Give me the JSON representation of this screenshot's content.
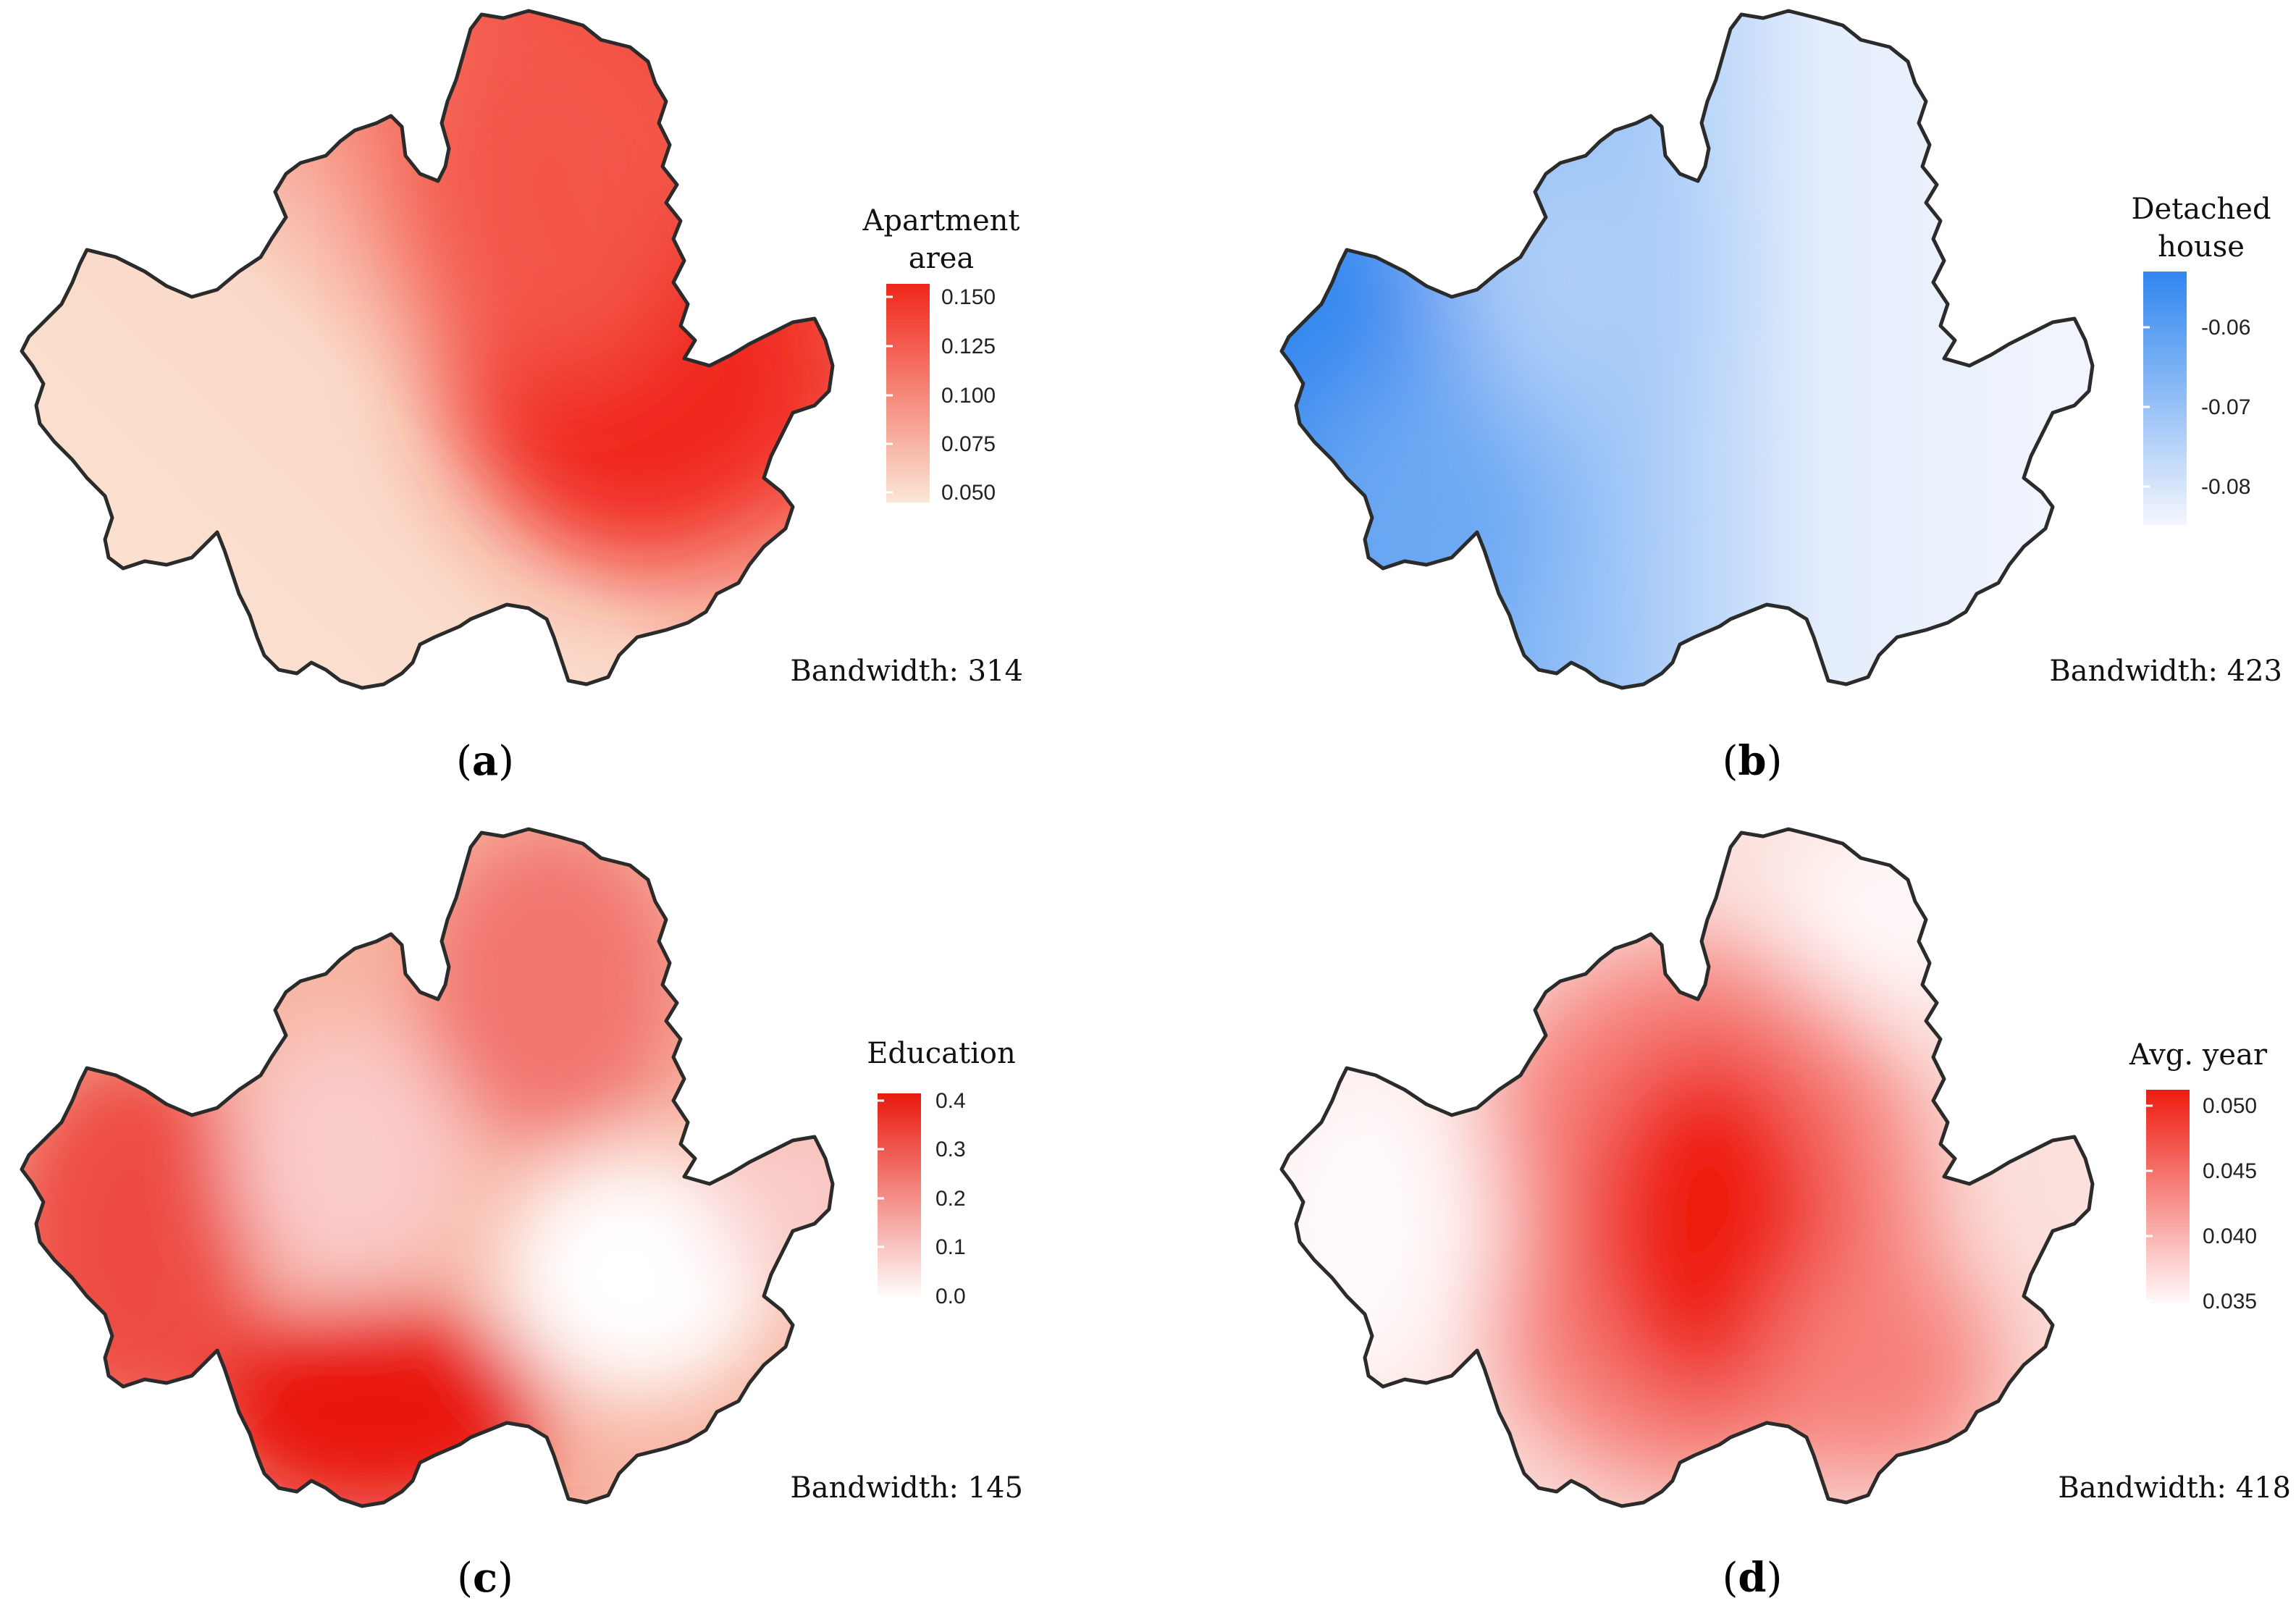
{
  "panels": [
    {
      "id": "a",
      "letter": "a",
      "legend_title": [
        "Apartment",
        "area"
      ],
      "ticks": [
        "0.150",
        "0.125",
        "0.100",
        "0.075",
        "0.050"
      ],
      "bandwidth": "Bandwidth: 314",
      "colors": {
        "low": "#fbe7d6",
        "high": "#f0261a"
      },
      "pattern": "apartment_area"
    },
    {
      "id": "b",
      "letter": "b",
      "legend_title": [
        "Detached",
        "house"
      ],
      "ticks": [
        "-0.06",
        "-0.07",
        "-0.08"
      ],
      "bandwidth": "Bandwidth: 423",
      "colors": {
        "low": "#f4f6fd",
        "high": "#2f86ef"
      },
      "pattern": "detached_house"
    },
    {
      "id": "c",
      "letter": "c",
      "legend_title": [
        "Education"
      ],
      "ticks": [
        "0.4",
        "0.3",
        "0.2",
        "0.1",
        "0.0"
      ],
      "bandwidth": "Bandwidth: 145",
      "colors": {
        "low": "#ffffff",
        "high": "#e8190e"
      },
      "pattern": "education"
    },
    {
      "id": "d",
      "letter": "d",
      "legend_title": [
        "Avg. year"
      ],
      "ticks": [
        "0.050",
        "0.045",
        "0.040",
        "0.035"
      ],
      "bandwidth": "Bandwidth: 418",
      "colors": {
        "low": "#fffafa",
        "high": "#ee1c10"
      },
      "pattern": "avg_year"
    }
  ]
}
